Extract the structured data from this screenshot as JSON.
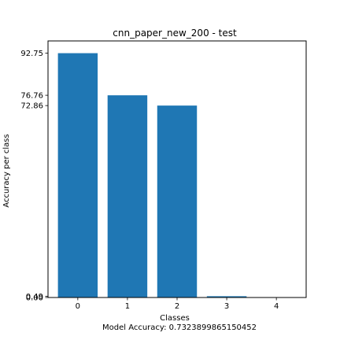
{
  "chart_data": {
    "type": "bar",
    "title": "cnn_paper_new_200 - test",
    "xlabel": "Classes",
    "ylabel": "Accuracy per class",
    "footnote": "Model Accuracy: 0.7323899865150452",
    "categories": [
      "0",
      "1",
      "2",
      "3",
      "4"
    ],
    "values": [
      92.75,
      76.76,
      72.86,
      0.49,
      0.0
    ],
    "yticks": [
      0.0,
      0.49,
      72.86,
      76.76,
      92.75
    ],
    "ytick_labels": [
      "0.00",
      "0.49",
      "72.86",
      "76.76",
      "92.75"
    ],
    "ylim": [
      0,
      97.4
    ],
    "grid": false,
    "bar_color": "#1f77b4"
  }
}
